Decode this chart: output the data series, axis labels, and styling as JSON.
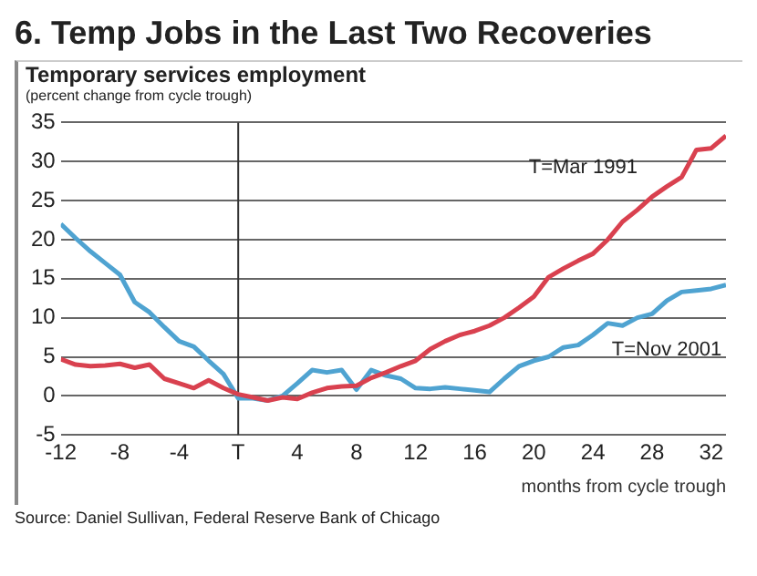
{
  "chart_data": {
    "type": "line",
    "title": "6. Temp Jobs in the Last Two Recoveries",
    "subtitle": "Temporary services employment",
    "ylabel": "(percent change from cycle trough)",
    "xlabel": "months from cycle trough",
    "x": [
      -12,
      -11,
      -10,
      -9,
      -8,
      -7,
      -6,
      -5,
      -4,
      -3,
      -2,
      -1,
      0,
      1,
      2,
      3,
      4,
      5,
      6,
      7,
      8,
      9,
      10,
      11,
      12,
      13,
      14,
      15,
      16,
      17,
      18,
      19,
      20,
      21,
      22,
      23,
      24,
      25,
      26,
      27,
      28,
      29,
      30,
      31,
      32,
      33
    ],
    "series": [
      {
        "name": "T=Mar 1991",
        "color": "#d9414f",
        "values": [
          4.7,
          4.0,
          3.8,
          3.9,
          4.1,
          3.6,
          4.0,
          2.2,
          1.6,
          1.0,
          2.0,
          1.0,
          0.2,
          -0.2,
          -0.6,
          -0.2,
          -0.4,
          0.4,
          1.0,
          1.2,
          1.3,
          2.3,
          3.0,
          3.8,
          4.5,
          6.0,
          7.0,
          7.8,
          8.3,
          9.0,
          10.0,
          11.3,
          12.7,
          15.2,
          16.3,
          17.3,
          18.2,
          20.0,
          22.3,
          23.8,
          25.5,
          26.8,
          28.0,
          31.5,
          31.7,
          33.3
        ]
      },
      {
        "name": "T=Nov 2001",
        "color": "#4fa3d1",
        "values": [
          22,
          20.2,
          18.5,
          17,
          15.5,
          12,
          10.7,
          8.8,
          7,
          6.3,
          4.5,
          2.8,
          -0.3,
          -0.3,
          -0.6,
          0,
          1.6,
          3.3,
          3.0,
          3.3,
          0.8,
          3.3,
          2.6,
          2.2,
          1.0,
          0.9,
          1.1,
          0.9,
          0.7,
          0.5,
          2.2,
          3.8,
          4.5,
          5.0,
          6.2,
          6.5,
          7.8,
          9.3,
          9.0,
          10.0,
          10.5,
          12.2,
          13.3,
          13.5,
          13.7,
          14.2
        ]
      }
    ],
    "xlim": [
      -12,
      33
    ],
    "xticks": [
      -12,
      -8,
      -4,
      {
        "value": 0,
        "label": "T"
      },
      4,
      8,
      12,
      16,
      20,
      24,
      28,
      32
    ],
    "ylim": [
      -5,
      35
    ],
    "yticks": [
      -5,
      0,
      5,
      10,
      15,
      20,
      25,
      30,
      35
    ],
    "grid": "y",
    "marker": "none",
    "line_style": "solid",
    "ref_lines": [
      {
        "axis": "x",
        "value": 0,
        "color": "#333333"
      }
    ],
    "annotations": [
      "Source: Daniel Sullivan, Federal Reserve Bank of Chicago"
    ]
  }
}
